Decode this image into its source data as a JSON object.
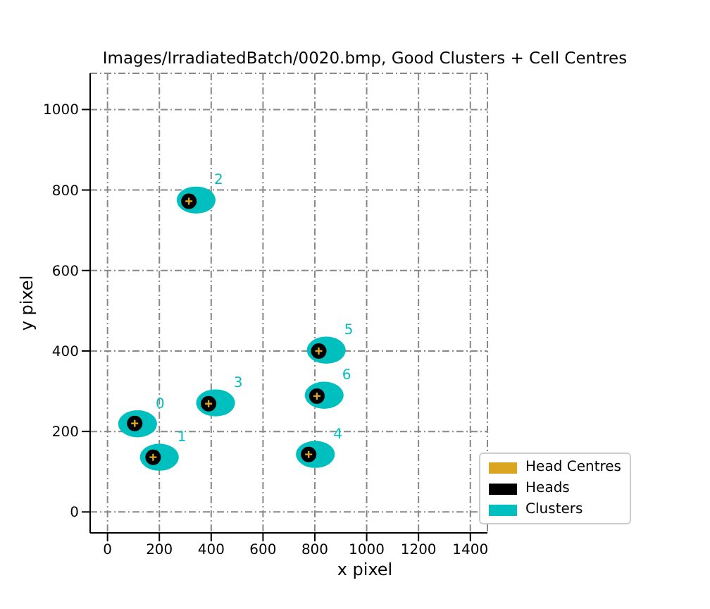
{
  "chart_data": {
    "type": "scatter",
    "title": "Images/IrradiatedBatch/0020.bmp, Good Clusters + Cell Centres",
    "xlabel": "x pixel",
    "ylabel": "y pixel",
    "xlim": [
      -67,
      1466
    ],
    "ylim": [
      -52,
      1090
    ],
    "xticks": [
      0,
      200,
      400,
      600,
      800,
      1000,
      1200,
      1400
    ],
    "yticks": [
      0,
      200,
      400,
      600,
      800,
      1000
    ],
    "grid": true,
    "legend": "bottom right",
    "series": [
      {
        "name": "Head Centres",
        "color": "#daa520",
        "marker": "cross",
        "x": [
          105,
          176,
          314,
          390,
          776,
          815,
          808
        ],
        "values": [
          220,
          136,
          772,
          269,
          143,
          400,
          288
        ]
      },
      {
        "name": "Heads",
        "color": "#000000",
        "marker": "circle",
        "x": [
          105,
          176,
          314,
          390,
          776,
          815,
          808
        ],
        "values": [
          220,
          136,
          772,
          269,
          143,
          400,
          288
        ]
      },
      {
        "name": "Clusters",
        "color": "#00bfbf",
        "marker": "circle",
        "x": [
          116,
          200,
          342,
          417,
          802,
          844,
          836
        ],
        "values": [
          219,
          136,
          775,
          271,
          143,
          402,
          290
        ]
      }
    ],
    "annotations": [
      "0",
      "1",
      "2",
      "3",
      "4",
      "5",
      "6"
    ]
  }
}
